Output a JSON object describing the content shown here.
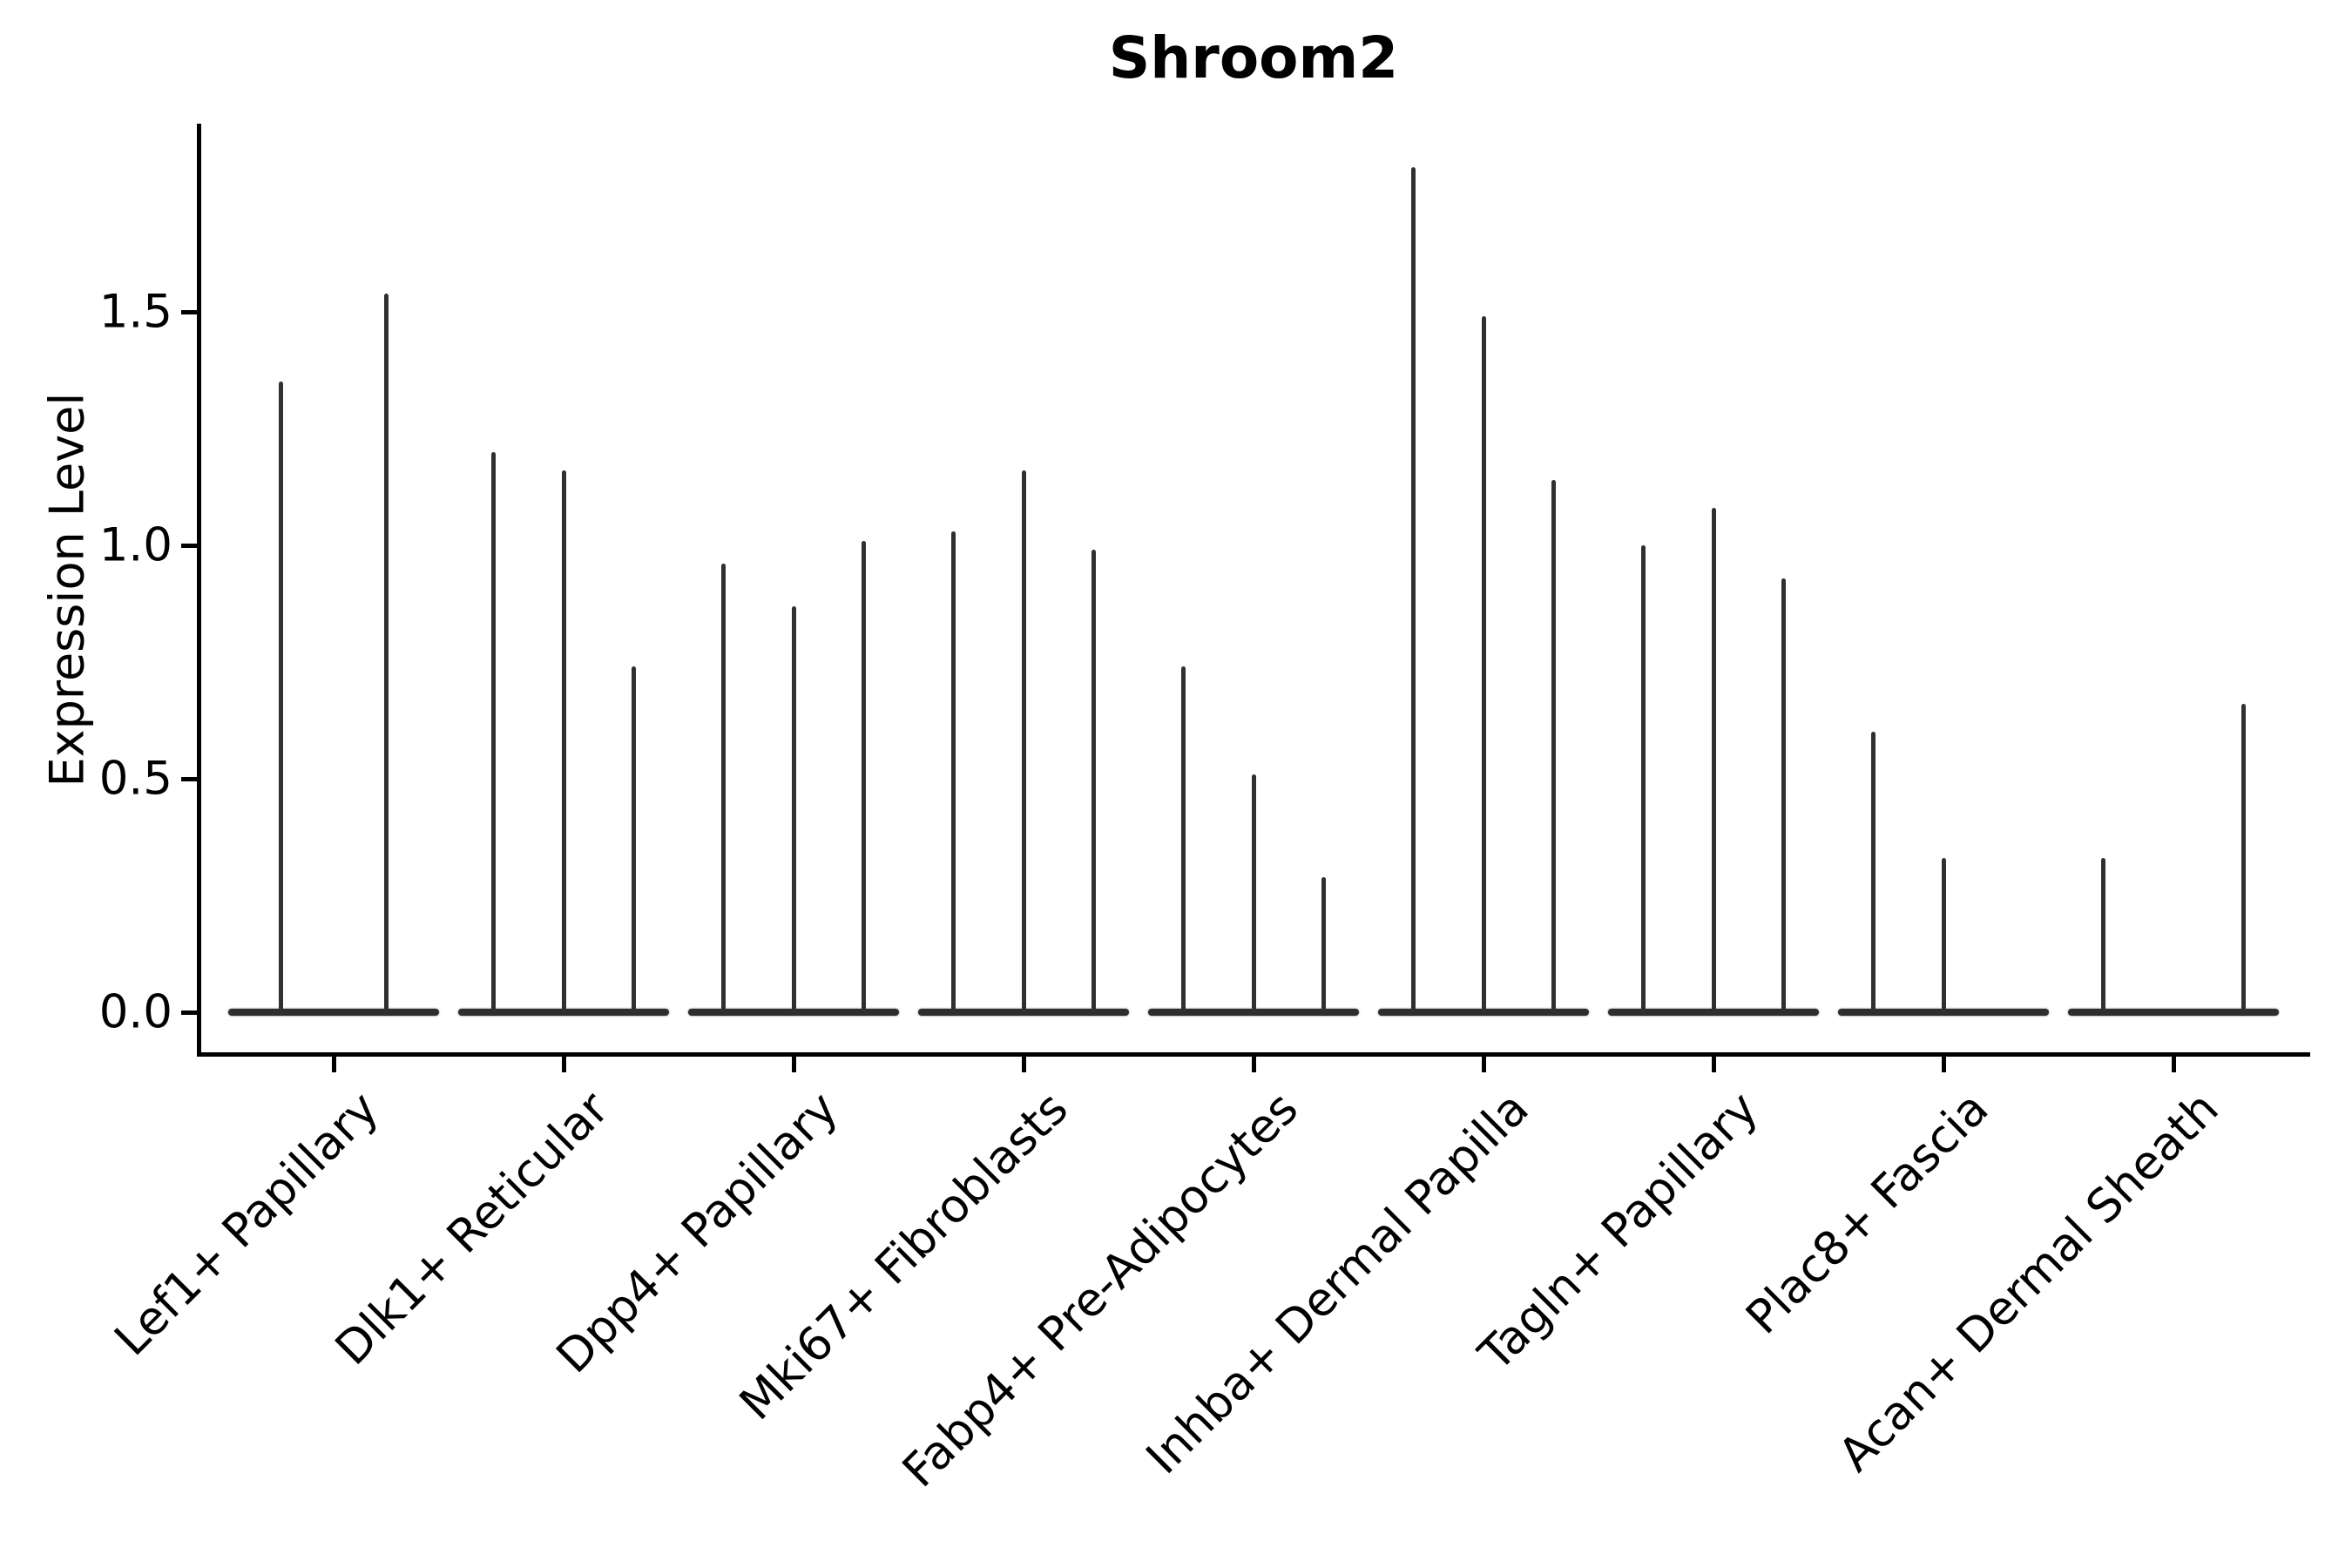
{
  "chart_data": {
    "type": "violin",
    "title": "Shroom2",
    "ylabel": "Expression Level",
    "xlabel": "",
    "yticks": [
      0.0,
      0.5,
      1.0,
      1.5
    ],
    "ytick_labels": [
      "0.0",
      "0.5",
      "1.0",
      "1.5"
    ],
    "ylim": [
      -0.09,
      1.9
    ],
    "grid": false,
    "legend": "none",
    "description": "Grouped violin plot of gene expression; each cluster shows 2-3 needle-thin violins (wide base at 0, thin spike up to the maximum expression value).",
    "categories": [
      "Lef1+ Papillary",
      "Dlk1+ Reticular",
      "Dpp4+ Papillary",
      "Mki67+ Fibroblasts",
      "Fabp4+ Pre-Adipocytes",
      "Inhba+ Dermal Papilla",
      "Tagln+ Papillary",
      "Plac8+ Fascia",
      "Acan+ Dermal Sheath"
    ],
    "groups": [
      {
        "category": "Lef1+ Papillary",
        "violin_maxima": [
          1.35,
          1.54
        ]
      },
      {
        "category": "Dlk1+ Reticular",
        "violin_maxima": [
          1.2,
          1.16,
          0.74
        ]
      },
      {
        "category": "Dpp4+ Papillary",
        "violin_maxima": [
          0.96,
          0.87,
          1.01
        ]
      },
      {
        "category": "Mki67+ Fibroblasts",
        "violin_maxima": [
          1.03,
          1.16,
          0.99
        ]
      },
      {
        "category": "Fabp4+ Pre-Adipocytes",
        "violin_maxima": [
          0.74,
          0.51,
          0.29
        ]
      },
      {
        "category": "Inhba+ Dermal Papilla",
        "violin_maxima": [
          1.81,
          1.49,
          1.14
        ]
      },
      {
        "category": "Tagln+ Papillary",
        "violin_maxima": [
          1.0,
          1.08,
          0.93
        ]
      },
      {
        "category": "Plac8+ Fascia",
        "violin_maxima": [
          0.6,
          0.33,
          0.0
        ]
      },
      {
        "category": "Acan+ Dermal Sheath",
        "violin_maxima": [
          0.33,
          0.0,
          0.66
        ]
      }
    ],
    "colors": {
      "violin": "#2e2e2e",
      "spike": "#303030",
      "axis": "#000000",
      "text": "#000000",
      "background": "#ffffff"
    }
  }
}
